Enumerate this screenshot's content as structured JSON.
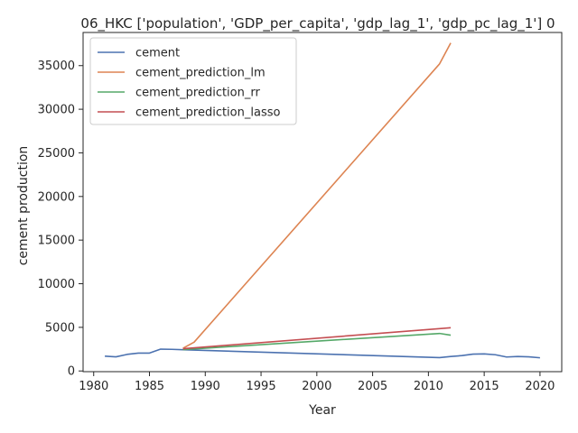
{
  "chart_data": {
    "type": "line",
    "title": "06_HKC ['population', 'GDP_per_capita', 'gdp_lag_1', 'gdp_pc_lag_1'] 0",
    "xlabel": "Year",
    "ylabel": "cement production",
    "xlim": [
      1979.05,
      2021.95
    ],
    "ylim": [
      -80,
      38800
    ],
    "xticks": [
      1980,
      1985,
      1990,
      1995,
      2000,
      2005,
      2010,
      2015,
      2020
    ],
    "yticks": [
      0,
      5000,
      10000,
      15000,
      20000,
      25000,
      30000,
      35000
    ],
    "grid": false,
    "legend_position": "upper-left",
    "series": [
      {
        "name": "cement",
        "color": "#4c72b0",
        "x": [
          1981,
          1982,
          1983,
          1984,
          1985,
          1986,
          1987,
          1988,
          2011,
          2012,
          2013,
          2014,
          2015,
          2016,
          2017,
          2018,
          2019,
          2020
        ],
        "y": [
          1700,
          1620,
          1900,
          2050,
          2050,
          2500,
          2480,
          2430,
          1530,
          1660,
          1760,
          1930,
          1960,
          1860,
          1600,
          1660,
          1620,
          1510
        ]
      },
      {
        "name": "cement_prediction_lm",
        "color": "#dd8452",
        "x": [
          1988,
          1989,
          2011,
          2012
        ],
        "y": [
          2600,
          3300,
          35200,
          37600
        ]
      },
      {
        "name": "cement_prediction_rr",
        "color": "#55a868",
        "x": [
          1988,
          2011,
          2012
        ],
        "y": [
          2450,
          4300,
          4100
        ]
      },
      {
        "name": "cement_prediction_lasso",
        "color": "#c44e52",
        "x": [
          1988,
          2011,
          2012
        ],
        "y": [
          2550,
          4850,
          4950
        ]
      }
    ]
  }
}
